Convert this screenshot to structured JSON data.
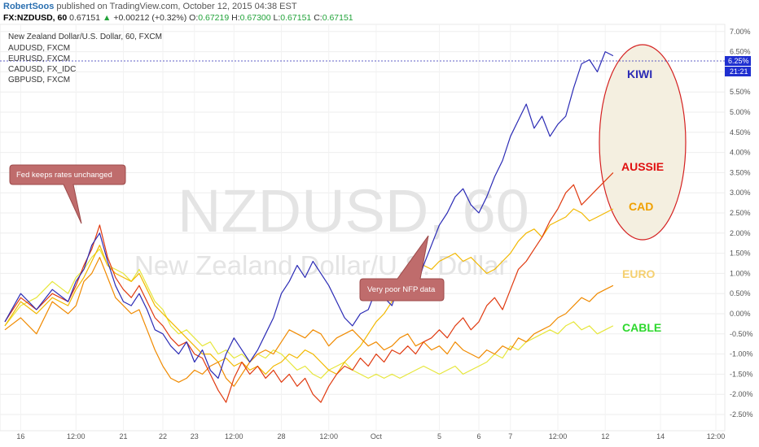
{
  "header": {
    "author": "RobertSoos",
    "published": "published on TradingView.com, October 12, 2015 04:38 EST",
    "symbol": "FX:NZDUSD, 60",
    "last": "0.67151",
    "change_arrow": "▲",
    "change": "+0.00212 (+0.32%)",
    "o_label": "O:",
    "o_value": "0.67219",
    "h_label": "H:",
    "h_value": "0.67300",
    "l_label": "L:",
    "l_value": "0.67151",
    "c_label": "C:",
    "c_value": "0.67151"
  },
  "legend": {
    "main": "New Zealand Dollar/U.S. Dollar, 60, FXCM",
    "items": [
      "AUDUSD, FXCM",
      "EURUSD, FXCM",
      "CADUSD, FX_IDC",
      "GBPUSD, FXCM"
    ]
  },
  "watermark": {
    "line1": "NZDUSD, 60",
    "line2": "New Zealand Dollar/U.S. Dollar"
  },
  "annotations": {
    "fed": "Fed keeps rates unchanged",
    "nfp": "Very poor NFP data"
  },
  "price_tag": {
    "value": "6.25%",
    "timer": "21:21"
  },
  "colors": {
    "nzd": "#2b2bb5",
    "aud": "#e03a10",
    "cad": "#f2b800",
    "eur": "#f08a00",
    "gbp": "#e6e63a",
    "callout": "#bf6c6c",
    "ellipse_stroke": "#d42020",
    "ellipse_fill": "#f4efe0",
    "price_tag": "#1f2fd0"
  },
  "chart_data": {
    "type": "line",
    "title": "New Zealand Dollar/U.S. Dollar, 60, FXCM",
    "ylabel": "",
    "xlabel": "",
    "ylim": [
      -2.75,
      7.1
    ],
    "xlim": [
      0,
      90
    ],
    "y_ticks": [
      "7.00%",
      "6.50%",
      "6.00%",
      "5.50%",
      "5.00%",
      "4.50%",
      "4.00%",
      "3.50%",
      "3.00%",
      "2.50%",
      "2.00%",
      "1.50%",
      "1.00%",
      "0.50%",
      "0.00%",
      "-0.50%",
      "-1.00%",
      "-1.50%",
      "-2.00%",
      "-2.50%"
    ],
    "y_tick_values": [
      7,
      6.5,
      6,
      5.5,
      5,
      4.5,
      4,
      3.5,
      3,
      2.5,
      2,
      1.5,
      1,
      0.5,
      0,
      -0.5,
      -1,
      -1.5,
      -2,
      -2.5
    ],
    "x_ticks": [
      {
        "label": "16",
        "x": 2
      },
      {
        "label": "12:00",
        "x": 9
      },
      {
        "label": "21",
        "x": 15
      },
      {
        "label": "22",
        "x": 20
      },
      {
        "label": "23",
        "x": 24
      },
      {
        "label": "12:00",
        "x": 29
      },
      {
        "label": "28",
        "x": 35
      },
      {
        "label": "12:00",
        "x": 41
      },
      {
        "label": "Oct",
        "x": 47
      },
      {
        "label": "5",
        "x": 55
      },
      {
        "label": "6",
        "x": 60
      },
      {
        "label": "7",
        "x": 64
      },
      {
        "label": "12:00",
        "x": 70
      },
      {
        "label": "12",
        "x": 76
      },
      {
        "label": "14",
        "x": 83
      },
      {
        "label": "12:00",
        "x": 90
      }
    ],
    "grid": true,
    "series": [
      {
        "name": "KIWI",
        "color": "#2b2bb5",
        "x": [
          0,
          2,
          4,
          6,
          8,
          9,
          10,
          11,
          12,
          13,
          14,
          15,
          16,
          17,
          18,
          19,
          20,
          21,
          22,
          23,
          24,
          25,
          26,
          27,
          28,
          29,
          30,
          31,
          32,
          33,
          34,
          35,
          36,
          37,
          38,
          39,
          40,
          41,
          42,
          43,
          44,
          45,
          46,
          47,
          48,
          49,
          50,
          51,
          52,
          53,
          54,
          55,
          56,
          57,
          58,
          59,
          60,
          61,
          62,
          63,
          64,
          65,
          66,
          67,
          68,
          69,
          70,
          71,
          72,
          73,
          74,
          75,
          76,
          77
        ],
        "y": [
          -0.2,
          0.5,
          0.1,
          0.6,
          0.3,
          0.8,
          1.1,
          1.7,
          2.0,
          1.3,
          0.7,
          0.3,
          0.2,
          0.5,
          0.1,
          -0.4,
          -0.5,
          -0.8,
          -1.0,
          -0.7,
          -1.2,
          -0.9,
          -1.4,
          -1.6,
          -1.0,
          -0.6,
          -0.9,
          -1.2,
          -0.9,
          -0.5,
          -0.1,
          0.5,
          0.8,
          1.2,
          0.9,
          1.3,
          1.0,
          0.7,
          0.3,
          -0.1,
          -0.3,
          0.0,
          0.1,
          0.6,
          0.4,
          0.2,
          0.8,
          1.0,
          0.6,
          1.2,
          1.7,
          2.2,
          2.5,
          2.9,
          3.1,
          2.7,
          2.5,
          2.9,
          3.4,
          3.8,
          4.4,
          4.8,
          5.2,
          4.6,
          4.9,
          4.4,
          4.7,
          4.9,
          5.6,
          6.2,
          6.3,
          6.0,
          6.5,
          6.4
        ]
      },
      {
        "name": "AUSSIE",
        "color": "#e03a10",
        "x": [
          0,
          2,
          4,
          6,
          8,
          9,
          10,
          11,
          12,
          13,
          14,
          15,
          16,
          17,
          18,
          19,
          20,
          21,
          22,
          23,
          24,
          25,
          26,
          27,
          28,
          29,
          30,
          31,
          32,
          33,
          34,
          35,
          36,
          37,
          38,
          39,
          40,
          41,
          42,
          43,
          44,
          45,
          46,
          47,
          48,
          49,
          50,
          51,
          52,
          53,
          54,
          55,
          56,
          57,
          58,
          59,
          60,
          61,
          62,
          63,
          64,
          65,
          66,
          67,
          68,
          69,
          70,
          71,
          72,
          73,
          74,
          75,
          76,
          77
        ],
        "y": [
          -0.2,
          0.4,
          0.1,
          0.5,
          0.3,
          0.7,
          1.2,
          1.6,
          2.2,
          1.4,
          0.9,
          0.6,
          0.4,
          0.7,
          0.3,
          -0.1,
          -0.3,
          -0.6,
          -0.8,
          -0.7,
          -1.0,
          -1.1,
          -1.5,
          -1.9,
          -2.2,
          -1.6,
          -1.2,
          -1.5,
          -1.3,
          -1.6,
          -1.4,
          -1.7,
          -1.5,
          -1.8,
          -1.6,
          -2.0,
          -2.2,
          -1.8,
          -1.5,
          -1.3,
          -1.4,
          -1.1,
          -1.3,
          -1.0,
          -1.2,
          -0.9,
          -1.0,
          -0.8,
          -1.0,
          -0.7,
          -0.6,
          -0.4,
          -0.6,
          -0.3,
          -0.1,
          -0.4,
          -0.2,
          0.2,
          0.4,
          0.1,
          0.6,
          1.1,
          1.3,
          1.6,
          1.9,
          2.3,
          2.6,
          3.0,
          3.2,
          2.7,
          2.9,
          3.1,
          3.3,
          3.5
        ]
      },
      {
        "name": "CAD",
        "color": "#f2b800",
        "x": [
          0,
          2,
          4,
          6,
          8,
          9,
          10,
          11,
          12,
          13,
          14,
          15,
          16,
          17,
          18,
          19,
          20,
          21,
          22,
          23,
          24,
          25,
          26,
          27,
          28,
          29,
          30,
          31,
          32,
          33,
          34,
          35,
          36,
          37,
          38,
          39,
          40,
          41,
          42,
          43,
          44,
          45,
          46,
          47,
          48,
          49,
          50,
          51,
          52,
          53,
          54,
          55,
          56,
          57,
          58,
          59,
          60,
          61,
          62,
          63,
          64,
          65,
          66,
          67,
          68,
          69,
          70,
          71,
          72,
          73,
          74,
          75,
          76,
          77
        ],
        "y": [
          -0.3,
          0.3,
          0.0,
          0.4,
          0.2,
          0.6,
          0.9,
          1.3,
          1.7,
          1.2,
          1.0,
          0.9,
          0.8,
          1.0,
          0.6,
          0.2,
          0.0,
          -0.2,
          -0.4,
          -0.6,
          -0.8,
          -1.0,
          -1.0,
          -1.2,
          -1.1,
          -1.3,
          -1.2,
          -1.4,
          -1.3,
          -1.5,
          -1.3,
          -1.2,
          -1.0,
          -1.1,
          -0.9,
          -1.0,
          -1.2,
          -1.4,
          -1.5,
          -1.2,
          -1.0,
          -0.8,
          -0.5,
          -0.2,
          0.0,
          0.3,
          0.6,
          0.9,
          1.0,
          1.2,
          1.1,
          1.3,
          1.4,
          1.5,
          1.3,
          1.4,
          1.2,
          1.0,
          1.1,
          1.3,
          1.5,
          1.8,
          2.0,
          2.1,
          1.9,
          2.2,
          2.3,
          2.4,
          2.6,
          2.5,
          2.3,
          2.4,
          2.5,
          2.6
        ]
      },
      {
        "name": "EURO",
        "color": "#f08a00",
        "x": [
          0,
          2,
          4,
          6,
          8,
          9,
          10,
          11,
          12,
          13,
          14,
          15,
          16,
          17,
          18,
          19,
          20,
          21,
          22,
          23,
          24,
          25,
          26,
          27,
          28,
          29,
          30,
          31,
          32,
          33,
          34,
          35,
          36,
          37,
          38,
          39,
          40,
          41,
          42,
          43,
          44,
          45,
          46,
          47,
          48,
          49,
          50,
          51,
          52,
          53,
          54,
          55,
          56,
          57,
          58,
          59,
          60,
          61,
          62,
          63,
          64,
          65,
          66,
          67,
          68,
          69,
          70,
          71,
          72,
          73,
          74,
          75,
          76,
          77
        ],
        "y": [
          -0.4,
          -0.1,
          -0.5,
          0.3,
          0.0,
          0.2,
          0.8,
          1.0,
          1.4,
          0.9,
          0.4,
          0.2,
          0.0,
          0.1,
          -0.4,
          -0.9,
          -1.3,
          -1.6,
          -1.7,
          -1.6,
          -1.4,
          -1.5,
          -1.3,
          -1.2,
          -1.6,
          -1.8,
          -1.5,
          -1.2,
          -1.0,
          -0.9,
          -1.0,
          -0.7,
          -0.4,
          -0.5,
          -0.6,
          -0.4,
          -0.5,
          -0.8,
          -0.6,
          -0.5,
          -0.4,
          -0.6,
          -0.8,
          -0.7,
          -0.9,
          -0.8,
          -0.6,
          -0.5,
          -0.8,
          -0.7,
          -0.9,
          -0.8,
          -1.0,
          -0.7,
          -0.9,
          -1.0,
          -1.1,
          -0.9,
          -1.0,
          -0.8,
          -0.9,
          -0.6,
          -0.7,
          -0.5,
          -0.4,
          -0.3,
          -0.1,
          0.0,
          0.2,
          0.4,
          0.3,
          0.5,
          0.6,
          0.7
        ]
      },
      {
        "name": "CABLE",
        "color": "#e6e63a",
        "x": [
          0,
          2,
          4,
          6,
          8,
          9,
          10,
          11,
          12,
          13,
          14,
          15,
          16,
          17,
          18,
          19,
          20,
          21,
          22,
          23,
          24,
          25,
          26,
          27,
          28,
          29,
          30,
          31,
          32,
          33,
          34,
          35,
          36,
          37,
          38,
          39,
          40,
          41,
          42,
          43,
          44,
          45,
          46,
          47,
          48,
          49,
          50,
          51,
          52,
          53,
          54,
          55,
          56,
          57,
          58,
          59,
          60,
          61,
          62,
          63,
          64,
          65,
          66,
          67,
          68,
          69,
          70,
          71,
          72,
          73,
          74,
          75,
          76,
          77
        ],
        "y": [
          -0.3,
          0.2,
          0.4,
          0.8,
          0.5,
          0.9,
          1.1,
          1.4,
          1.6,
          1.2,
          1.1,
          1.0,
          0.8,
          1.1,
          0.7,
          0.3,
          0.1,
          -0.3,
          -0.5,
          -0.4,
          -0.6,
          -0.8,
          -0.7,
          -1.0,
          -0.9,
          -1.1,
          -1.0,
          -1.2,
          -1.0,
          -1.1,
          -0.9,
          -1.0,
          -1.2,
          -1.4,
          -1.3,
          -1.5,
          -1.6,
          -1.4,
          -1.3,
          -1.2,
          -1.4,
          -1.5,
          -1.6,
          -1.5,
          -1.6,
          -1.5,
          -1.6,
          -1.5,
          -1.4,
          -1.3,
          -1.4,
          -1.5,
          -1.4,
          -1.3,
          -1.5,
          -1.4,
          -1.3,
          -1.2,
          -1.0,
          -1.1,
          -0.8,
          -0.9,
          -0.7,
          -0.6,
          -0.5,
          -0.4,
          -0.5,
          -0.3,
          -0.2,
          -0.4,
          -0.3,
          -0.5,
          -0.4,
          -0.3
        ]
      }
    ],
    "labels": [
      "KIWI",
      "AUSSIE",
      "CAD",
      "EURO",
      "CABLE"
    ]
  }
}
